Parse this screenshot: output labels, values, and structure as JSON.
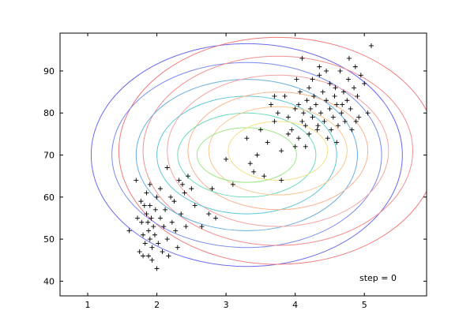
{
  "chart_data": {
    "type": "scatter",
    "title": "",
    "xlabel": "",
    "ylabel": "",
    "xlim": [
      0.6,
      5.9
    ],
    "ylim": [
      36.5,
      99
    ],
    "xticks": [
      1,
      2,
      3,
      4,
      5
    ],
    "yticks": [
      40,
      50,
      60,
      70,
      80,
      90
    ],
    "x_tick_labels": [
      "1",
      "2",
      "3",
      "4",
      "5"
    ],
    "y_tick_labels": [
      "40",
      "50",
      "60",
      "70",
      "80",
      "90"
    ],
    "grid": false,
    "marker": "+",
    "annotation": "step = 0",
    "points": [
      [
        1.6,
        52
      ],
      [
        1.7,
        64
      ],
      [
        1.72,
        55
      ],
      [
        1.75,
        47
      ],
      [
        1.77,
        59
      ],
      [
        1.78,
        54
      ],
      [
        1.8,
        51
      ],
      [
        1.8,
        46
      ],
      [
        1.82,
        58
      ],
      [
        1.83,
        49
      ],
      [
        1.85,
        61
      ],
      [
        1.85,
        56
      ],
      [
        1.87,
        54
      ],
      [
        1.88,
        52
      ],
      [
        1.88,
        46
      ],
      [
        1.9,
        63
      ],
      [
        1.9,
        58
      ],
      [
        1.9,
        50
      ],
      [
        1.92,
        55
      ],
      [
        1.93,
        48
      ],
      [
        1.93,
        45
      ],
      [
        1.95,
        53
      ],
      [
        1.97,
        51
      ],
      [
        1.98,
        57
      ],
      [
        2.0,
        43
      ],
      [
        2.0,
        60
      ],
      [
        2.02,
        49
      ],
      [
        2.05,
        55
      ],
      [
        2.05,
        62
      ],
      [
        2.08,
        47
      ],
      [
        2.1,
        53
      ],
      [
        2.12,
        57
      ],
      [
        2.15,
        67
      ],
      [
        2.15,
        50
      ],
      [
        2.17,
        46
      ],
      [
        2.2,
        60
      ],
      [
        2.22,
        54
      ],
      [
        2.25,
        59
      ],
      [
        2.27,
        52
      ],
      [
        2.3,
        48
      ],
      [
        2.32,
        64
      ],
      [
        2.35,
        56
      ],
      [
        2.37,
        63
      ],
      [
        2.4,
        61
      ],
      [
        2.42,
        53
      ],
      [
        2.45,
        65
      ],
      [
        2.5,
        62
      ],
      [
        2.55,
        58
      ],
      [
        2.65,
        53
      ],
      [
        2.75,
        56
      ],
      [
        2.8,
        62
      ],
      [
        2.85,
        55
      ],
      [
        3.0,
        69
      ],
      [
        3.1,
        63
      ],
      [
        3.3,
        74
      ],
      [
        3.35,
        68
      ],
      [
        3.4,
        66
      ],
      [
        3.45,
        70
      ],
      [
        3.5,
        76
      ],
      [
        3.55,
        65
      ],
      [
        3.6,
        73
      ],
      [
        3.65,
        82
      ],
      [
        3.7,
        78
      ],
      [
        3.75,
        80
      ],
      [
        3.8,
        71
      ],
      [
        3.8,
        64
      ],
      [
        3.85,
        84
      ],
      [
        3.9,
        79
      ],
      [
        3.95,
        76
      ],
      [
        4.0,
        81
      ],
      [
        4.0,
        72
      ],
      [
        4.02,
        88
      ],
      [
        4.05,
        74
      ],
      [
        4.07,
        85
      ],
      [
        4.1,
        93
      ],
      [
        4.1,
        78
      ],
      [
        4.12,
        80
      ],
      [
        4.15,
        77
      ],
      [
        4.17,
        83
      ],
      [
        4.2,
        75
      ],
      [
        4.2,
        86
      ],
      [
        4.22,
        81
      ],
      [
        4.25,
        79
      ],
      [
        4.27,
        84
      ],
      [
        4.3,
        82
      ],
      [
        4.32,
        76
      ],
      [
        4.35,
        89
      ],
      [
        4.37,
        80
      ],
      [
        4.4,
        85
      ],
      [
        4.42,
        78
      ],
      [
        4.45,
        83
      ],
      [
        4.47,
        74
      ],
      [
        4.5,
        87
      ],
      [
        4.5,
        81
      ],
      [
        4.52,
        76
      ],
      [
        4.55,
        79
      ],
      [
        4.57,
        84
      ],
      [
        4.6,
        82
      ],
      [
        4.62,
        77
      ],
      [
        4.65,
        90
      ],
      [
        4.67,
        80
      ],
      [
        4.7,
        85
      ],
      [
        4.72,
        78
      ],
      [
        4.75,
        83
      ],
      [
        4.77,
        88
      ],
      [
        4.8,
        81
      ],
      [
        4.82,
        76
      ],
      [
        4.85,
        86
      ],
      [
        4.87,
        91
      ],
      [
        4.9,
        84
      ],
      [
        4.92,
        79
      ],
      [
        4.95,
        89
      ],
      [
        5.0,
        87
      ],
      [
        5.05,
        80
      ],
      [
        5.1,
        96
      ],
      [
        4.35,
        91
      ],
      [
        4.25,
        88
      ],
      [
        4.15,
        72
      ],
      [
        3.9,
        75
      ],
      [
        4.6,
        73
      ],
      [
        4.45,
        90
      ],
      [
        4.58,
        86
      ],
      [
        4.68,
        82
      ],
      [
        4.33,
        77
      ],
      [
        4.05,
        82
      ],
      [
        3.7,
        84
      ],
      [
        4.88,
        78
      ],
      [
        4.78,
        93
      ]
    ],
    "ellipses": [
      {
        "cx": 3.3,
        "cy": 70.0,
        "rx": 2.25,
        "ry": 26.5,
        "color": "#6a6aee"
      },
      {
        "cx": 3.75,
        "cy": 71.0,
        "rx": 2.3,
        "ry": 27.0,
        "color": "#f07a7a"
      },
      {
        "cx": 3.3,
        "cy": 70.0,
        "rx": 1.95,
        "ry": 22.0,
        "color": "#7a8aee"
      },
      {
        "cx": 3.75,
        "cy": 71.0,
        "rx": 1.95,
        "ry": 22.5,
        "color": "#f39090"
      },
      {
        "cx": 3.3,
        "cy": 70.0,
        "rx": 1.6,
        "ry": 18.0,
        "color": "#6aaee0"
      },
      {
        "cx": 3.75,
        "cy": 71.0,
        "rx": 1.6,
        "ry": 18.0,
        "color": "#f5a5a5"
      },
      {
        "cx": 3.3,
        "cy": 70.0,
        "rx": 1.3,
        "ry": 14.0,
        "color": "#5ec8d8"
      },
      {
        "cx": 3.75,
        "cy": 71.0,
        "rx": 1.3,
        "ry": 14.0,
        "color": "#f7b490"
      },
      {
        "cx": 3.3,
        "cy": 70.0,
        "rx": 1.0,
        "ry": 10.0,
        "color": "#6ddcb8"
      },
      {
        "cx": 3.75,
        "cy": 71.0,
        "rx": 1.0,
        "ry": 10.5,
        "color": "#f8c890"
      },
      {
        "cx": 3.3,
        "cy": 70.0,
        "rx": 0.72,
        "ry": 6.5,
        "color": "#9ee888"
      },
      {
        "cx": 3.75,
        "cy": 71.0,
        "rx": 0.72,
        "ry": 7.0,
        "color": "#f5e08a"
      }
    ]
  }
}
